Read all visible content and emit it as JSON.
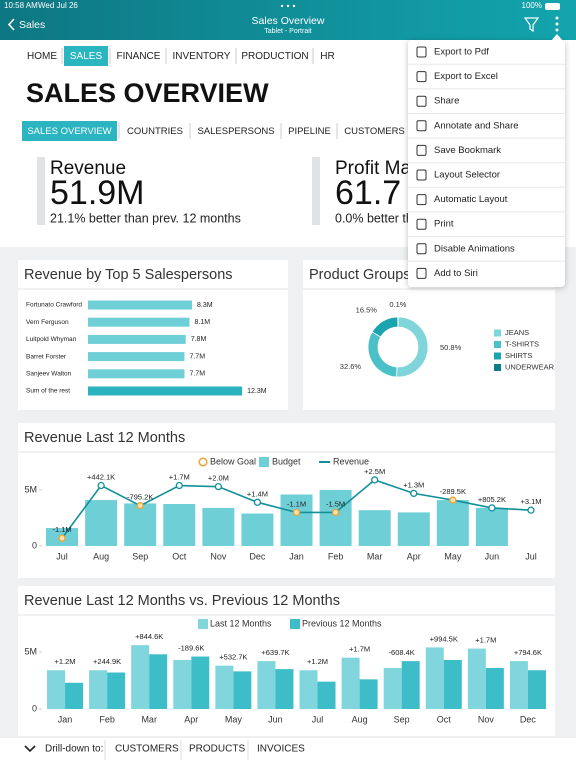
{
  "status_bar": {
    "time": "10:58 AM",
    "date": "Wed Jul 26",
    "battery": "100%"
  },
  "nav": {
    "back": "Sales",
    "title": "Sales Overview",
    "subtitle": "Tablet - Portrait"
  },
  "main_tabs": {
    "items": [
      "HOME",
      "SALES",
      "FINANCE",
      "INVENTORY",
      "PRODUCTION",
      "HR"
    ],
    "active": 1
  },
  "heading": "SALES OVERVIEW",
  "sub_tabs": {
    "items": [
      "SALES OVERVIEW",
      "COUNTRIES",
      "SALESPERSONS",
      "PIPELINE",
      "CUSTOMERS"
    ],
    "active": 0
  },
  "kpis": [
    {
      "label": "Revenue",
      "value": "51.9M",
      "note": "21.1% better than prev. 12 months"
    },
    {
      "label": "Profit Ma",
      "value": "61.7",
      "note": "0.0% better th"
    }
  ],
  "chart_data": [
    {
      "type": "bar",
      "orientation": "horizontal",
      "title": "Revenue by Top 5 Salespersons",
      "categories": [
        "Fortunato Crawford",
        "Vern Ferguson",
        "Luitpold Whyman",
        "Barret Forster",
        "Sanjeev Walton",
        "Sum of the rest"
      ],
      "values": [
        8.3,
        8.1,
        7.8,
        7.7,
        7.7,
        12.3
      ],
      "value_labels": [
        "8.3M",
        "8.1M",
        "7.8M",
        "7.7M",
        "7.7M",
        "12.3M"
      ],
      "colors": [
        "#6fcfd6",
        "#6fcfd6",
        "#6fcfd6",
        "#6fcfd6",
        "#6fcfd6",
        "#2ab3bf"
      ]
    },
    {
      "type": "pie",
      "donut": true,
      "title": "Product Groups",
      "categories": [
        "JEANS",
        "T-SHIRTS",
        "SHIRTS",
        "UNDERWEAR"
      ],
      "values": [
        50.8,
        32.6,
        16.5,
        0.1
      ],
      "value_labels": [
        "50.8%",
        "32.6%",
        "16.5%",
        "0.1%"
      ],
      "colors": [
        "#80d5da",
        "#4bc0c9",
        "#1ba4af",
        "#0b7f89"
      ]
    },
    {
      "type": "combo",
      "title": "Revenue Last 12 Months",
      "categories": [
        "Jul",
        "Aug",
        "Sep",
        "Oct",
        "Nov",
        "Dec",
        "Jan",
        "Feb",
        "Mar",
        "Apr",
        "May",
        "Jun",
        "Jul"
      ],
      "series": [
        {
          "name": "Budget",
          "type": "bar",
          "color": "#6fcfd6",
          "values": [
            1.6,
            4.1,
            3.8,
            3.75,
            3.4,
            2.9,
            4.6,
            5.0,
            3.2,
            3.0,
            4.1,
            3.4,
            null
          ]
        },
        {
          "name": "Revenue",
          "type": "line",
          "color": "#12909a",
          "values": [
            0.7,
            5.4,
            3.6,
            5.4,
            5.3,
            3.9,
            3.0,
            3.0,
            5.9,
            4.7,
            4.1,
            3.4,
            3.2
          ],
          "point_labels": [
            "-1.1M",
            "+442.1K",
            "-795.2K",
            "+1.7M",
            "+2.0M",
            "+1.4M",
            "-1.1M",
            "-1.5M",
            "+2.5M",
            "+1.3M",
            "-289.5K",
            "+805.2K",
            "+3.1M"
          ]
        }
      ],
      "markers": {
        "name": "Below Goal",
        "color": "#f0a331",
        "flags": [
          true,
          false,
          true,
          false,
          false,
          false,
          true,
          true,
          false,
          false,
          true,
          false,
          false
        ]
      },
      "ylim": [
        0,
        6
      ],
      "yticks": [
        0,
        {
          "value": 5,
          "label": "5M"
        }
      ]
    },
    {
      "type": "bar",
      "orientation": "vertical",
      "title": "Revenue Last 12 Months vs. Previous 12 Months",
      "categories": [
        "Jan",
        "Feb",
        "Mar",
        "Apr",
        "May",
        "Jun",
        "Jul",
        "Aug",
        "Sep",
        "Oct",
        "Nov",
        "Dec"
      ],
      "series": [
        {
          "name": "Last 12 Months",
          "color": "#80d6dc",
          "values": [
            3.4,
            3.4,
            5.6,
            4.3,
            3.8,
            4.2,
            3.4,
            4.5,
            3.6,
            5.4,
            5.3,
            4.2
          ]
        },
        {
          "name": "Previous 12 Months",
          "color": "#3dbdc7",
          "values": [
            2.3,
            3.2,
            4.8,
            4.6,
            3.3,
            3.5,
            2.4,
            2.6,
            4.2,
            4.3,
            3.6,
            3.4
          ]
        }
      ],
      "difference_labels": [
        "+1.2M",
        "+244.9K",
        "+844.6K",
        "-189.6K",
        "+532.7K",
        "+639.7K",
        "+1.2M",
        "+1.7M",
        "-608.4K",
        "+994.5K",
        "+1.7M",
        "+794.6K"
      ],
      "ylim": [
        0,
        6
      ],
      "yticks": [
        0,
        {
          "value": 5,
          "label": "5M"
        }
      ]
    }
  ],
  "menu": {
    "items": [
      "Export to Pdf",
      "Export to Excel",
      "Share",
      "Annotate and Share",
      "Save Bookmark",
      "Layout Selector",
      "Automatic Layout",
      "Print",
      "Disable Animations",
      "Add to Siri"
    ]
  },
  "drill_down": {
    "label": "Drill-down to:",
    "items": [
      "CUSTOMERS",
      "PRODUCTS",
      "INVOICES"
    ]
  }
}
